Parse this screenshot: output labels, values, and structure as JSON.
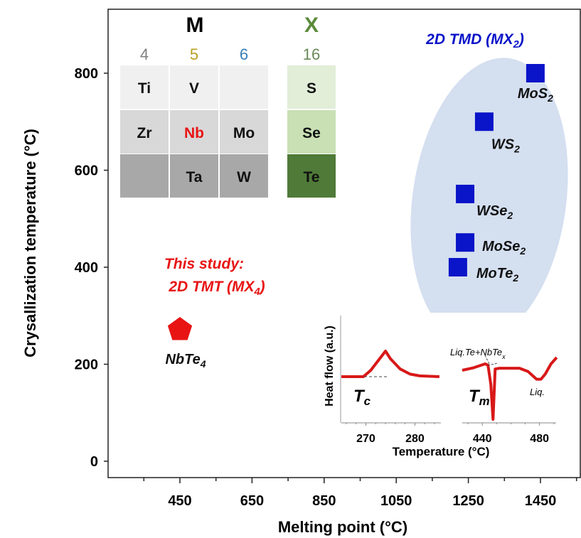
{
  "chart_data": {
    "type": "scatter",
    "xlabel": "Melting point (°C)",
    "ylabel": "Crysallization temperature (°C)",
    "xlim": [
      251,
      1562
    ],
    "ylim": [
      -34,
      932
    ],
    "xticks": [
      450,
      650,
      850,
      1050,
      1250,
      1450
    ],
    "yticks": [
      0,
      200,
      400,
      600,
      800
    ],
    "grid": false,
    "points": [
      {
        "label": "MoS",
        "sub": "2",
        "x": 1436,
        "y": 800,
        "group": "tmd"
      },
      {
        "label": "WS",
        "sub": "2",
        "x": 1294,
        "y": 700,
        "group": "tmd"
      },
      {
        "label": "WSe",
        "sub": "2",
        "x": 1241,
        "y": 551,
        "group": "tmd"
      },
      {
        "label": "MoSe",
        "sub": "2",
        "x": 1241,
        "y": 451,
        "group": "tmd"
      },
      {
        "label": "MoTe",
        "sub": "2",
        "x": 1221,
        "y": 400,
        "group": "tmd"
      },
      {
        "label": "NbTe",
        "sub": "4",
        "x": 450,
        "y": 274,
        "group": "tmt"
      }
    ],
    "annotations": {
      "tmd_title": "2D TMD (MX",
      "tmd_sub": "2",
      "tmd_close": ")",
      "tmt_line1": "This study:",
      "tmt_line2": "2D TMT (MX",
      "tmt_sub": "4",
      "tmt_close": ")"
    },
    "colors": {
      "tmd": "#0a14c8",
      "tmt": "#e81414",
      "ellipse": "#d4dff0",
      "curve": "#d81818"
    },
    "inset": {
      "ylabel": "Heat flow (a.u.)",
      "xlabel": "Temperature (°C)",
      "left": {
        "xlim": [
          265,
          285.3
        ],
        "xticks": [
          270,
          280
        ],
        "label": "T",
        "label_sub": "c",
        "curve": [
          [
            265,
            0
          ],
          [
            269.5,
            0
          ],
          [
            271,
            0.25
          ],
          [
            273,
            0.75
          ],
          [
            274,
            1
          ],
          [
            275,
            0.7
          ],
          [
            277,
            0.3
          ],
          [
            279,
            0.1
          ],
          [
            281,
            0.03
          ],
          [
            285,
            0
          ]
        ]
      },
      "right": {
        "xlim": [
          426,
          491.6
        ],
        "xticks": [
          440,
          480
        ],
        "label": "T",
        "label_sub": "m",
        "annotation_1": "Liq.Te+NbTe",
        "annotation_1_sub": "x",
        "annotation_2": "Liq.",
        "curve": [
          [
            426,
            0.25
          ],
          [
            434,
            0.35
          ],
          [
            442,
            0.5
          ],
          [
            444,
            0.45
          ],
          [
            446,
            -0.3
          ],
          [
            447.5,
            -1.67
          ],
          [
            449,
            0.3
          ],
          [
            452,
            0.33
          ],
          [
            466,
            0.33
          ],
          [
            472,
            0.2
          ],
          [
            478,
            -0.1
          ],
          [
            481,
            -0.1
          ],
          [
            484,
            0.1
          ],
          [
            488,
            0.5
          ],
          [
            492,
            0.75
          ]
        ]
      }
    },
    "periodic_table": {
      "m_header": "M",
      "x_header": "X",
      "groups": [
        "4",
        "5",
        "6",
        "16"
      ],
      "group_colors": [
        "#808080",
        "#b8a020",
        "#3a7fb8",
        "#6a8a5a"
      ],
      "rows": [
        [
          "Ti",
          "V",
          "",
          "S"
        ],
        [
          "Zr",
          "Nb",
          "Mo",
          "Se"
        ],
        [
          "",
          "Ta",
          "W",
          "Te"
        ]
      ]
    }
  }
}
